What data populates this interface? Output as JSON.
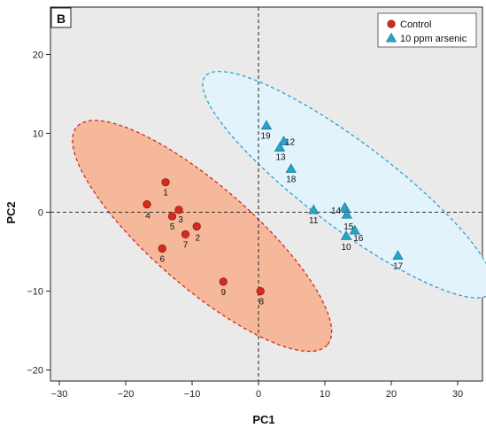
{
  "chart_data": {
    "type": "scatter",
    "panel_label": "B",
    "xlabel": "PC1",
    "ylabel": "PC2",
    "xlim": [
      -33,
      34
    ],
    "ylim": [
      -22,
      26
    ],
    "xticks": [
      -30,
      -20,
      -10,
      0,
      10,
      20,
      30
    ],
    "yticks": [
      -20,
      -10,
      0,
      10,
      20
    ],
    "xtick_labels": [
      "−30",
      "−20",
      "−10",
      "0",
      "10",
      "20",
      "30"
    ],
    "ytick_labels": [
      "−20",
      "−10",
      "0",
      "10",
      "20"
    ],
    "grid": false,
    "reference_lines": {
      "x": 0,
      "y": 0,
      "style": "dashed"
    },
    "legend_position": "top-right",
    "series": [
      {
        "name": "Control",
        "marker": "circle",
        "color": "#d42a1f",
        "ellipse_fill": "#f5b89a",
        "ellipse_stroke": "#d42a1f",
        "points": [
          {
            "label": "1",
            "x": -14,
            "y": 3.8
          },
          {
            "label": "2",
            "x": -9.3,
            "y": -1.8
          },
          {
            "label": "3",
            "x": -12,
            "y": 0.3
          },
          {
            "label": "4",
            "x": -16.8,
            "y": 1
          },
          {
            "label": "5",
            "x": -13,
            "y": -0.5
          },
          {
            "label": "6",
            "x": -14.5,
            "y": -4.6
          },
          {
            "label": "7",
            "x": -11,
            "y": -2.8
          },
          {
            "label": "8",
            "x": 0.3,
            "y": -10
          },
          {
            "label": "9",
            "x": -5.3,
            "y": -8.8
          }
        ]
      },
      {
        "name": "10 ppm arsenic",
        "marker": "triangle",
        "color": "#2aa3c9",
        "ellipse_fill": "#e3f3fb",
        "ellipse_stroke": "#2aa3c9",
        "points": [
          {
            "label": "10",
            "x": 13.2,
            "y": -3
          },
          {
            "label": "11",
            "x": 8.3,
            "y": 0.3
          },
          {
            "label": "12",
            "x": 3.8,
            "y": 9
          },
          {
            "label": "13",
            "x": 3.2,
            "y": 8.2
          },
          {
            "label": "14",
            "x": 13,
            "y": 0.6
          },
          {
            "label": "15",
            "x": 13.3,
            "y": -0.3
          },
          {
            "label": "16",
            "x": 14.5,
            "y": -2.3
          },
          {
            "label": "17",
            "x": 21,
            "y": -5.5
          },
          {
            "label": "18",
            "x": 4.9,
            "y": 5.5
          },
          {
            "label": "19",
            "x": 1.2,
            "y": 11
          }
        ]
      }
    ]
  }
}
